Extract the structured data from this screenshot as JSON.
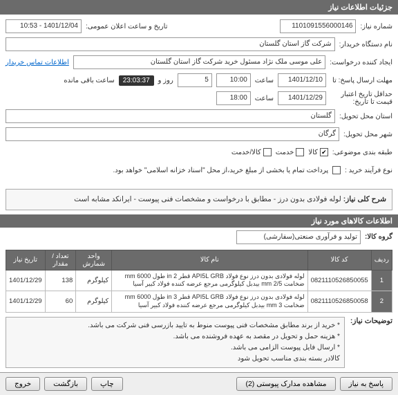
{
  "watermark": "۱۰۱۰۰۱",
  "headers": {
    "main": "جزئیات اطلاعات نیاز",
    "need_desc": "شرح کلی نیاز:",
    "items": "اطلاعات کالاهای مورد نیاز",
    "remarks_label": "توضیحات نیاز:"
  },
  "labels": {
    "need_no": "شماره نیاز:",
    "announce_dt": "تاریخ و ساعت اعلان عمومی:",
    "org": "نام دستگاه خریدار:",
    "requester": "ایجاد کننده درخواست:",
    "reply_deadline": "حداقل تاریخ\nتاریخ:",
    "reply_deadline2": "مهلت ارسال پاسخ: تا",
    "time": "ساعت",
    "day": "روز و",
    "remaining": "ساعت باقی مانده",
    "validity": "حداقل تاریخ اعتبار\nقیمت تا تاریخ:",
    "province": "استان محل تحویل:",
    "city": "شهر محل تحویل:",
    "classification": "طبقه بندی موضوعی:",
    "goods": "کالا",
    "service": "خدمت",
    "both": "کالا/خدمت",
    "purchase_type": "نوع فرآیند خرید :",
    "purchase_note": "پرداخت تمام یا بخشی از مبلغ خرید،از محل \"اسناد خزانه اسلامی\" خواهد بود.",
    "contact": "اطلاعات تماس خریدار",
    "group": "گروه کالا:"
  },
  "values": {
    "need_no": "1101091556000146",
    "announce_dt": "1401/12/04 - 10:53",
    "org": "شرکت گاز استان گلستان",
    "requester": "علی موسی ملک نژاد مسئول خرید شرکت گاز استان گلستان",
    "reply_date": "1401/12/10",
    "reply_time": "10:00",
    "reply_days": "5",
    "countdown": "23:03:37",
    "validity_date": "1401/12/29",
    "validity_time": "18:00",
    "province": "گلستان",
    "city": "گرگان",
    "group": "تولید و فرآوری صنعتی(سفارشی)"
  },
  "need_desc": "لوله فولادی بدون درز - مطابق با درخواست و مشخصات فنی پیوست - ایرانکد مشابه است",
  "table": {
    "cols": [
      "ردیف",
      "کد کالا",
      "نام کالا",
      "واحد شمارش",
      "تعداد / مقدار",
      "تاریخ نیاز"
    ],
    "rows": [
      {
        "idx": "1",
        "code": "0821110526850055",
        "name": "لوله فولادی بدون درز نوع فولاد API5L GRB قطر 2 in طول 6000 mm ضخامت 2/5 mm بیدبل کیلوگرمی مرجع عرضه کننده فولاد کبیر آسیا",
        "unit": "کیلوگرم",
        "qty": "138",
        "date": "1401/12/29"
      },
      {
        "idx": "2",
        "code": "0821110526850058",
        "name": "لوله فولادی بدون درز نوع فولاد API5L GRB قطر 3 in طول 6000 mm ضخامت 3 mm بیدبل کیلوگرمی مرجع عرضه کننده فولاد کبیر آسیا",
        "unit": "کیلوگرم",
        "qty": "60",
        "date": "1401/12/29"
      }
    ]
  },
  "remarks": [
    "* خرید از برند مطابق مشخصات فنی پیوست منوط به تایید بازرسی فنی شرکت می باشد.",
    "* هزینه حمل و تحویل در مقصد به عهده فروشنده می باشد.",
    "* ارسال فایل پیوست الزامی می باشد.",
    "کالادر بسته بندی مناسب تحویل شود"
  ],
  "buttons": {
    "reply": "پاسخ به نیاز",
    "docs": "مشاهده مدارک پیوستی (2)",
    "print": "چاپ",
    "back": "بازگشت",
    "exit": "خروج"
  }
}
